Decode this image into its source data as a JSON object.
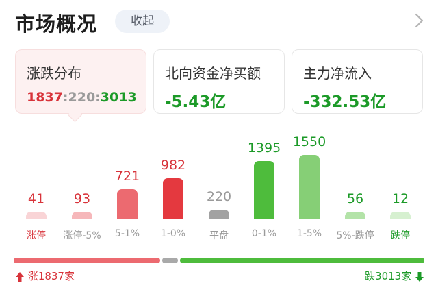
{
  "header": {
    "title": "市场概况",
    "collapse_label": "收起"
  },
  "cards": [
    {
      "label": "涨跌分布",
      "up": "1837",
      "sep1": ":",
      "flat": "220",
      "sep2": ":",
      "down": "3013"
    },
    {
      "label": "北向资金净买额",
      "value": "-5.43亿"
    },
    {
      "label": "主力净流入",
      "value": "-332.53亿"
    }
  ],
  "chart_data": {
    "type": "bar",
    "categories": [
      "涨停",
      "涨停-5%",
      "5-1%",
      "1-0%",
      "平盘",
      "0-1%",
      "1-5%",
      "5%-跌停",
      "跌停"
    ],
    "values": [
      41,
      93,
      721,
      982,
      220,
      1395,
      1550,
      56,
      12
    ],
    "labels": [
      "41",
      "93",
      "721",
      "982",
      "220",
      "1395",
      "1550",
      "56",
      "12"
    ],
    "colors": [
      "#f9d4d6",
      "#f6b7ba",
      "#ec6a70",
      "#e4393f",
      "#a2a2a2",
      "#4ebc3c",
      "#86cf76",
      "#b3e3a8",
      "#d6f0d0"
    ],
    "label_colors": [
      "#d8333a",
      "#d8333a",
      "#d8333a",
      "#d8333a",
      "#9a9a9a",
      "#1c9a28",
      "#1c9a28",
      "#1c9a28",
      "#1c9a28"
    ],
    "category_colors": [
      "#d8333a",
      "#9a9a9a",
      "#9a9a9a",
      "#9a9a9a",
      "#9a9a9a",
      "#9a9a9a",
      "#9a9a9a",
      "#9a9a9a",
      "#1c9a28"
    ]
  },
  "footer": {
    "up_text": "涨1837家",
    "down_text": "跌3013家",
    "up_count": 1837,
    "flat_count": 220,
    "down_count": 3013
  }
}
